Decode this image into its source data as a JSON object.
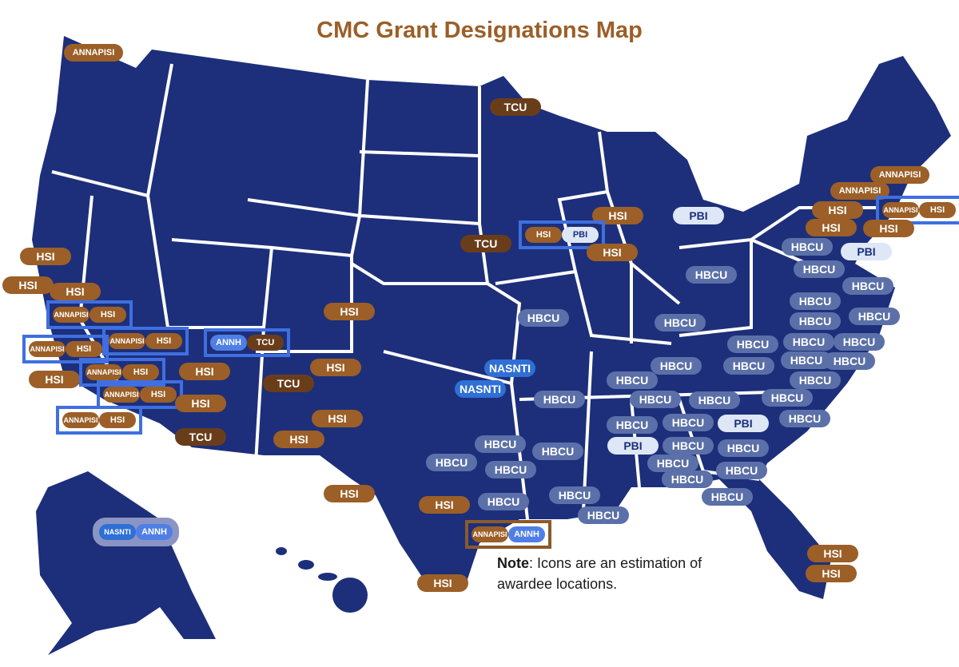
{
  "title": "CMC Grant Designations Map",
  "note_label": "Note",
  "note_text": ": Icons are an estimation of awardee locations.",
  "styles": {
    "HSI": {
      "fill": "#9b5f27",
      "text": "#ffffff"
    },
    "TCU": {
      "fill": "#6a3d1a",
      "text": "#ffffff"
    },
    "ANNAPISI": {
      "fill": "#9b5f27",
      "text": "#ffffff"
    },
    "HBCU": {
      "fill": "#5b70a8",
      "text": "#ffffff"
    },
    "PBI": {
      "fill": "#dde7f6",
      "text": "#1d2f7a"
    },
    "NASNTI": {
      "fill": "#2f6fd6",
      "text": "#ffffff"
    },
    "ANNH": {
      "fill": "#4f7fe6",
      "text": "#ffffff"
    }
  },
  "markers": [
    [
      "ANNAPISI"
    ],
    [
      "TCU"
    ],
    [
      "ANNAPISI"
    ],
    [
      "ANNAPISI"
    ],
    [
      "HSI"
    ],
    [
      "ANNAPISI",
      "HSI"
    ],
    [
      "HSI"
    ],
    [
      "PBI"
    ],
    [
      "TCU"
    ],
    [
      "HSI",
      "PBI"
    ],
    [
      "HSI"
    ],
    [
      "HSI"
    ],
    [
      "HSI"
    ],
    [
      "HBCU"
    ],
    [
      "PBI"
    ],
    [
      "HBCU"
    ],
    [
      "HBCU"
    ],
    [
      "HBCU"
    ],
    [
      "HSI"
    ],
    [
      "HSI"
    ],
    [
      "HSI"
    ],
    [
      "ANNAPISI",
      "HSI"
    ],
    [
      "HSI"
    ],
    [
      "HBCU"
    ],
    [
      "HBCU"
    ],
    [
      "HBCU"
    ],
    [
      "HBCU"
    ],
    [
      "HBCU"
    ],
    [
      "ANNAPISI",
      "HSI"
    ],
    [
      "ANNH",
      "TCU"
    ],
    [
      "ANNAPISI",
      "HSI"
    ],
    [
      "HBCU"
    ],
    [
      "HBCU"
    ],
    [
      "HBCU"
    ],
    [
      "HSI"
    ],
    [
      "ANNAPISI",
      "HSI"
    ],
    [
      "HSI"
    ],
    [
      "HSI"
    ],
    [
      "NASNTI"
    ],
    [
      "HBCU"
    ],
    [
      "HBCU"
    ],
    [
      "HBCU"
    ],
    [
      "HBCU"
    ],
    [
      "HBCU"
    ],
    [
      "HBCU"
    ],
    [
      "TCU"
    ],
    [
      "NASNTI"
    ],
    [
      "ANNAPISI",
      "HSI"
    ],
    [
      "HSI"
    ],
    [
      "HBCU"
    ],
    [
      "HBCU"
    ],
    [
      "HBCU"
    ],
    [
      "HBCU"
    ],
    [
      "ANNAPISI",
      "HSI"
    ],
    [
      "HSI"
    ],
    [
      "HBCU"
    ],
    [
      "HBCU"
    ],
    [
      "HBCU"
    ],
    [
      "PBI"
    ],
    [
      "TCU"
    ],
    [
      "HSI"
    ],
    [
      "HBCU"
    ],
    [
      "PBI"
    ],
    [
      "HBCU"
    ],
    [
      "HBCU"
    ],
    [
      "HBCU"
    ],
    [
      "HBCU"
    ],
    [
      "HBCU"
    ],
    [
      "HBCU"
    ],
    [
      "HBCU"
    ],
    [
      "HBCU"
    ],
    [
      "HSI"
    ],
    [
      "HSI"
    ],
    [
      "HBCU"
    ],
    [
      "HBCU"
    ],
    [
      "HBCU"
    ],
    [
      "HBCU"
    ],
    [
      "NASNTI",
      "ANNH"
    ],
    [
      "ANNAPISI",
      "ANNH"
    ],
    [
      "HSI"
    ],
    [
      "HSI"
    ],
    [
      "HSI"
    ]
  ]
}
